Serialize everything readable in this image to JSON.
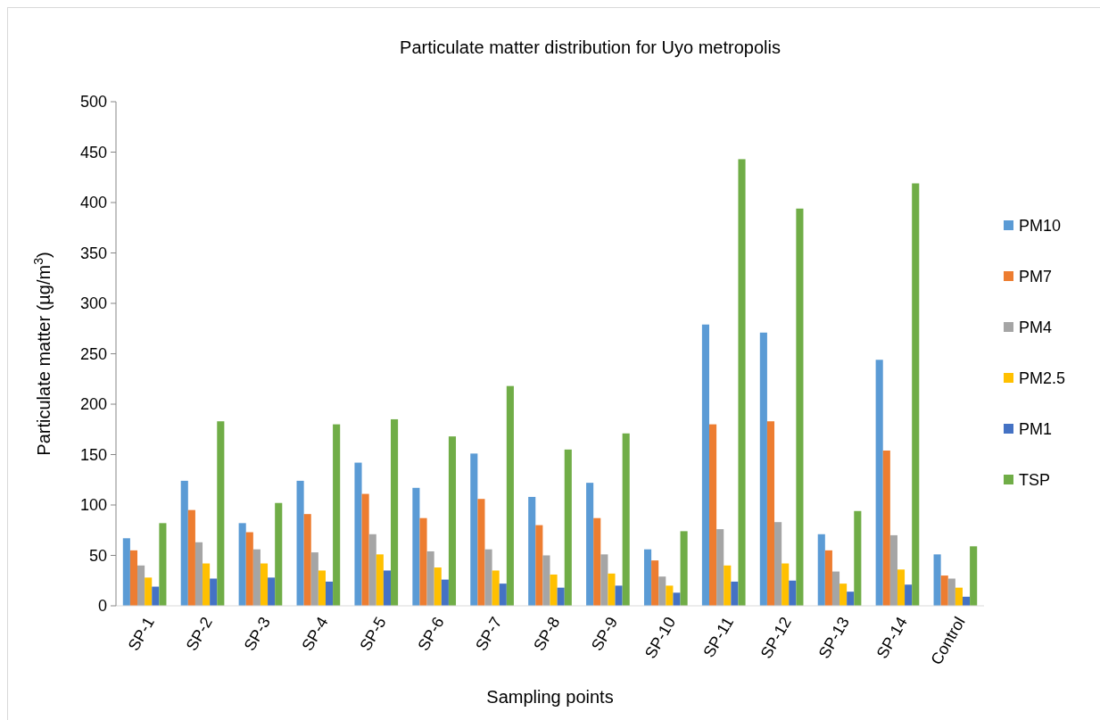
{
  "chart_data": {
    "type": "bar",
    "title": "Particulate matter distribution for Uyo metropolis",
    "xlabel": "Sampling points",
    "ylabel": "Particulate matter (µg/m$^{3}$)",
    "categories": [
      "SP-1",
      "SP-2",
      "SP-3",
      "SP-4",
      "SP-5",
      "SP-6",
      "SP-7",
      "SP-8",
      "SP-9",
      "SP-10",
      "SP-11",
      "SP-12",
      "SP-13",
      "SP-14",
      "Control"
    ],
    "series": [
      {
        "name": "PM10",
        "color": "#5b9bd5",
        "values": [
          67,
          124,
          82,
          124,
          142,
          117,
          151,
          108,
          122,
          56,
          279,
          271,
          71,
          244,
          51
        ]
      },
      {
        "name": "PM7",
        "color": "#ed7d31",
        "values": [
          55,
          95,
          73,
          91,
          111,
          87,
          106,
          80,
          87,
          45,
          180,
          183,
          55,
          154,
          30
        ]
      },
      {
        "name": "PM4",
        "color": "#a5a5a5",
        "values": [
          40,
          63,
          56,
          53,
          71,
          54,
          56,
          50,
          51,
          29,
          76,
          83,
          34,
          70,
          27
        ]
      },
      {
        "name": "PM2.5",
        "color": "#ffc000",
        "values": [
          28,
          42,
          42,
          35,
          51,
          38,
          35,
          31,
          32,
          20,
          40,
          42,
          22,
          36,
          18
        ]
      },
      {
        "name": "PM1",
        "color": "#4472c4",
        "values": [
          19,
          27,
          28,
          24,
          35,
          26,
          22,
          18,
          20,
          13,
          24,
          25,
          14,
          21,
          9
        ]
      },
      {
        "name": "TSP",
        "color": "#70ad47",
        "values": [
          82,
          183,
          102,
          180,
          185,
          168,
          218,
          155,
          171,
          74,
          443,
          394,
          94,
          419,
          59
        ]
      }
    ],
    "ylim": [
      0,
      500
    ],
    "yticks": [
      0,
      50,
      100,
      150,
      200,
      250,
      300,
      350,
      400,
      450,
      500
    ],
    "grid": false,
    "legend": "right"
  }
}
